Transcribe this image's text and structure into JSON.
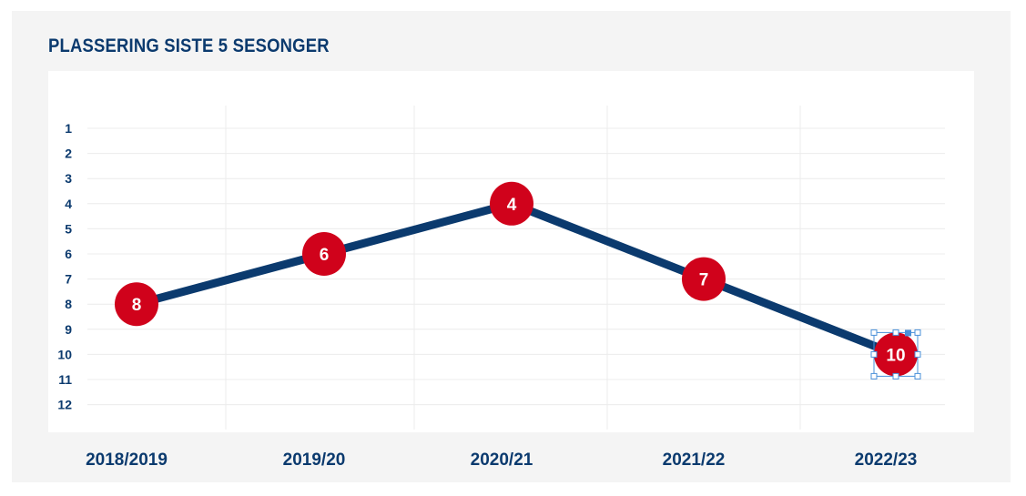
{
  "chart_data": {
    "type": "line",
    "title": "PLASSERING SISTE 5 SESONGER",
    "categories": [
      "2018/2019",
      "2019/20",
      "2020/21",
      "2021/22",
      "2022/23"
    ],
    "y_ticks": [
      "1",
      "2",
      "3",
      "4",
      "5",
      "6",
      "7",
      "8",
      "9",
      "10",
      "11",
      "12"
    ],
    "series": [
      {
        "values": [
          8,
          6,
          4,
          7,
          10
        ]
      }
    ],
    "ylim": [
      1,
      12
    ],
    "y_inverted": true,
    "grid": true,
    "legend": "none"
  },
  "colors": {
    "line": "#0b3a6e",
    "marker": "#d0021b",
    "text": "#0b3a6e",
    "grid": "#ececec"
  }
}
